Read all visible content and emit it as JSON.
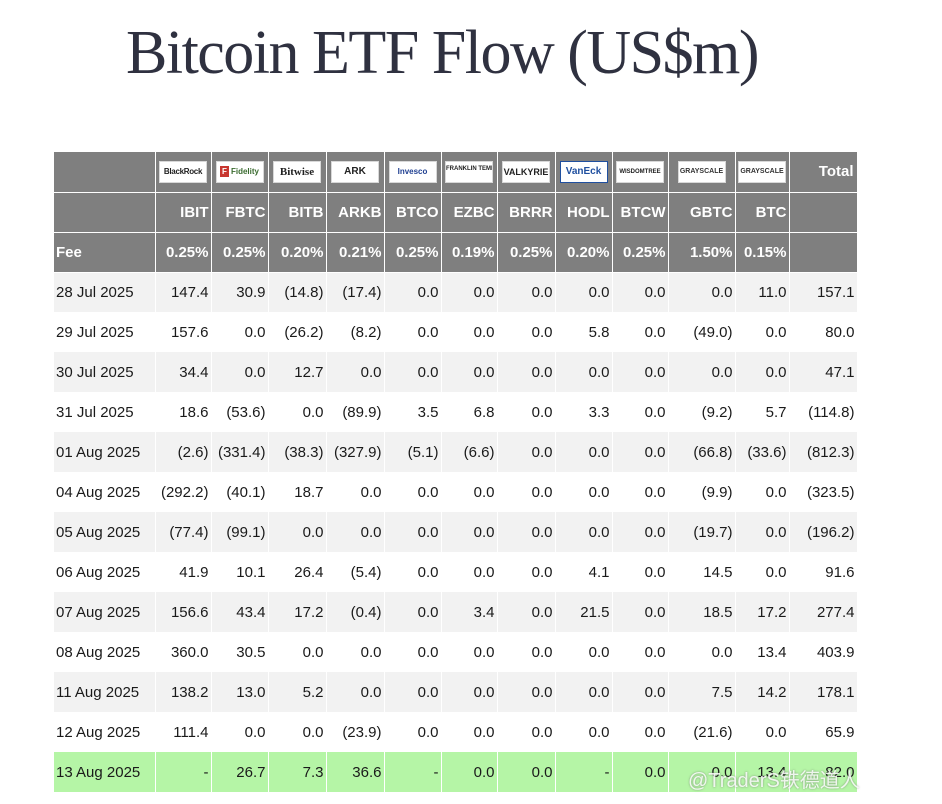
{
  "title": "Bitcoin ETF Flow (US$m)",
  "columns": [
    {
      "code": "IBIT",
      "fee": "0.25%",
      "logo": "BlackRock",
      "logo_class": "blackrock",
      "logo_icon": "blackrock-logo-icon"
    },
    {
      "code": "FBTC",
      "fee": "0.25%",
      "logo": "Fidelity",
      "logo_class": "fidelity",
      "logo_icon": "fidelity-logo-icon"
    },
    {
      "code": "BITB",
      "fee": "0.20%",
      "logo": "Bitwise",
      "logo_class": "bitwise",
      "logo_icon": "bitwise-logo-icon"
    },
    {
      "code": "ARKB",
      "fee": "0.21%",
      "logo": "ARK",
      "logo_class": "ark",
      "logo_icon": "ark-logo-icon"
    },
    {
      "code": "BTCO",
      "fee": "0.25%",
      "logo": "Invesco",
      "logo_class": "invesco",
      "logo_icon": "invesco-logo-icon"
    },
    {
      "code": "EZBC",
      "fee": "0.19%",
      "logo": "FRANKLIN TEMPLETON",
      "logo_class": "franklin",
      "logo_icon": "franklin-templeton-logo-icon"
    },
    {
      "code": "BRRR",
      "fee": "0.25%",
      "logo": "VALKYRIE",
      "logo_class": "valkyrie",
      "logo_icon": "valkyrie-logo-icon"
    },
    {
      "code": "HODL",
      "fee": "0.20%",
      "logo": "VanEck",
      "logo_class": "vaneck",
      "logo_icon": "vaneck-logo-icon"
    },
    {
      "code": "BTCW",
      "fee": "0.25%",
      "logo": "WISDOMTREE",
      "logo_class": "wisdomtree",
      "logo_icon": "wisdomtree-logo-icon"
    },
    {
      "code": "GBTC",
      "fee": "1.50%",
      "logo": "GRAYSCALE",
      "logo_class": "grayscale",
      "logo_icon": "grayscale-logo-icon"
    },
    {
      "code": "BTC",
      "fee": "0.15%",
      "logo": "GRAYSCALE",
      "logo_class": "grayscale",
      "logo_icon": "grayscale-mini-logo-icon"
    }
  ],
  "total_label": "Total",
  "fee_label": "Fee",
  "rows": [
    {
      "date": "28 Jul 2025",
      "values": [
        "147.4",
        "30.9",
        "(14.8)",
        "(17.4)",
        "0.0",
        "0.0",
        "0.0",
        "0.0",
        "0.0",
        "0.0",
        "11.0"
      ],
      "total": "157.1"
    },
    {
      "date": "29 Jul 2025",
      "values": [
        "157.6",
        "0.0",
        "(26.2)",
        "(8.2)",
        "0.0",
        "0.0",
        "0.0",
        "5.8",
        "0.0",
        "(49.0)",
        "0.0"
      ],
      "total": "80.0"
    },
    {
      "date": "30 Jul 2025",
      "values": [
        "34.4",
        "0.0",
        "12.7",
        "0.0",
        "0.0",
        "0.0",
        "0.0",
        "0.0",
        "0.0",
        "0.0",
        "0.0"
      ],
      "total": "47.1"
    },
    {
      "date": "31 Jul 2025",
      "values": [
        "18.6",
        "(53.6)",
        "0.0",
        "(89.9)",
        "3.5",
        "6.8",
        "0.0",
        "3.3",
        "0.0",
        "(9.2)",
        "5.7"
      ],
      "total": "(114.8)"
    },
    {
      "date": "01 Aug 2025",
      "values": [
        "(2.6)",
        "(331.4)",
        "(38.3)",
        "(327.9)",
        "(5.1)",
        "(6.6)",
        "0.0",
        "0.0",
        "0.0",
        "(66.8)",
        "(33.6)"
      ],
      "total": "(812.3)"
    },
    {
      "date": "04 Aug 2025",
      "values": [
        "(292.2)",
        "(40.1)",
        "18.7",
        "0.0",
        "0.0",
        "0.0",
        "0.0",
        "0.0",
        "0.0",
        "(9.9)",
        "0.0"
      ],
      "total": "(323.5)"
    },
    {
      "date": "05 Aug 2025",
      "values": [
        "(77.4)",
        "(99.1)",
        "0.0",
        "0.0",
        "0.0",
        "0.0",
        "0.0",
        "0.0",
        "0.0",
        "(19.7)",
        "0.0"
      ],
      "total": "(196.2)"
    },
    {
      "date": "06 Aug 2025",
      "values": [
        "41.9",
        "10.1",
        "26.4",
        "(5.4)",
        "0.0",
        "0.0",
        "0.0",
        "4.1",
        "0.0",
        "14.5",
        "0.0"
      ],
      "total": "91.6"
    },
    {
      "date": "07 Aug 2025",
      "values": [
        "156.6",
        "43.4",
        "17.2",
        "(0.4)",
        "0.0",
        "3.4",
        "0.0",
        "21.5",
        "0.0",
        "18.5",
        "17.2"
      ],
      "total": "277.4"
    },
    {
      "date": "08 Aug 2025",
      "values": [
        "360.0",
        "30.5",
        "0.0",
        "0.0",
        "0.0",
        "0.0",
        "0.0",
        "0.0",
        "0.0",
        "0.0",
        "13.4"
      ],
      "total": "403.9"
    },
    {
      "date": "11 Aug 2025",
      "values": [
        "138.2",
        "13.0",
        "5.2",
        "0.0",
        "0.0",
        "0.0",
        "0.0",
        "0.0",
        "0.0",
        "7.5",
        "14.2"
      ],
      "total": "178.1"
    },
    {
      "date": "12 Aug 2025",
      "values": [
        "111.4",
        "0.0",
        "0.0",
        "(23.9)",
        "0.0",
        "0.0",
        "0.0",
        "0.0",
        "0.0",
        "(21.6)",
        "0.0"
      ],
      "total": "65.9"
    },
    {
      "date": "13 Aug 2025",
      "values": [
        "-",
        "26.7",
        "7.3",
        "36.6",
        "-",
        "0.0",
        "0.0",
        "-",
        "0.0",
        "0.0",
        "13.4"
      ],
      "total": "82.0",
      "highlight": true
    }
  ],
  "watermark": "@TraderS铁德道人",
  "colors": {
    "header_bg": "#7f7f7f",
    "negative": "#e0301e",
    "highlight": "#b5f5a6",
    "stripe": "#f2f2f2"
  }
}
